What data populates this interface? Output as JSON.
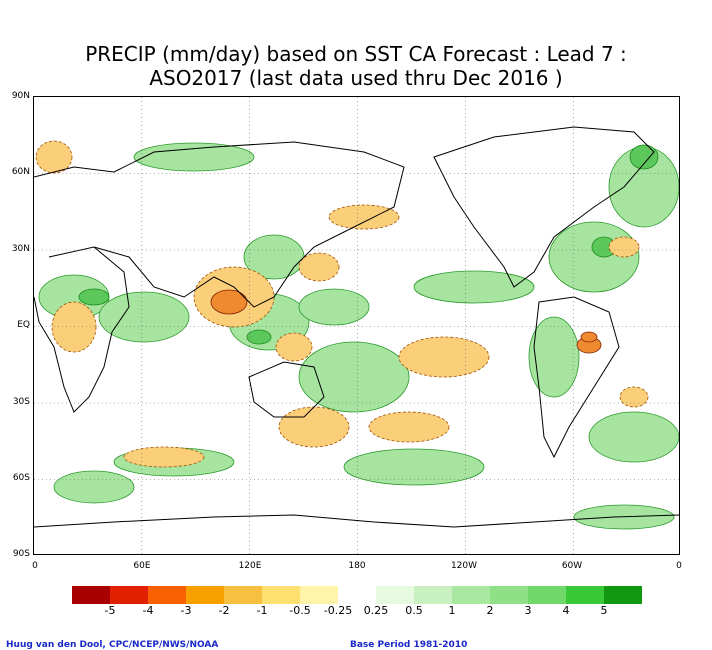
{
  "title": {
    "line1": "PRECIP (mm/day) based on SST CA Forecast : Lead 7 :",
    "line2": "ASO2017 (last data used thru Dec 2016 )"
  },
  "map": {
    "lat_ticks": [
      "90N",
      "60N",
      "30N",
      "EQ",
      "30S",
      "60S",
      "90S"
    ],
    "lon_ticks": [
      "0",
      "60E",
      "120E",
      "180",
      "120W",
      "60W",
      "0"
    ]
  },
  "legend": {
    "colors": [
      "#a80000",
      "#e02000",
      "#f86000",
      "#f8a000",
      "#f8c040",
      "#fde070",
      "#fff4a8",
      "#ffffff",
      "#e6fae0",
      "#c8f0c0",
      "#a8e8a0",
      "#90e088",
      "#70d868",
      "#38c838",
      "#109810"
    ],
    "labels": [
      "-5",
      "-4",
      "-3",
      "-2",
      "-1",
      "-0.5",
      "-0.25",
      "0.25",
      "0.5",
      "1",
      "2",
      "3",
      "4",
      "5"
    ]
  },
  "footer": {
    "credit": "Huug van den Dool, CPC/NCEP/NWS/NOAA",
    "base_period": "Base Period 1981-2010"
  },
  "colors": {
    "dry": "#f8c070",
    "wet": "#9ee09a",
    "wet_strong": "#60c860",
    "dry_strong": "#f07830"
  }
}
